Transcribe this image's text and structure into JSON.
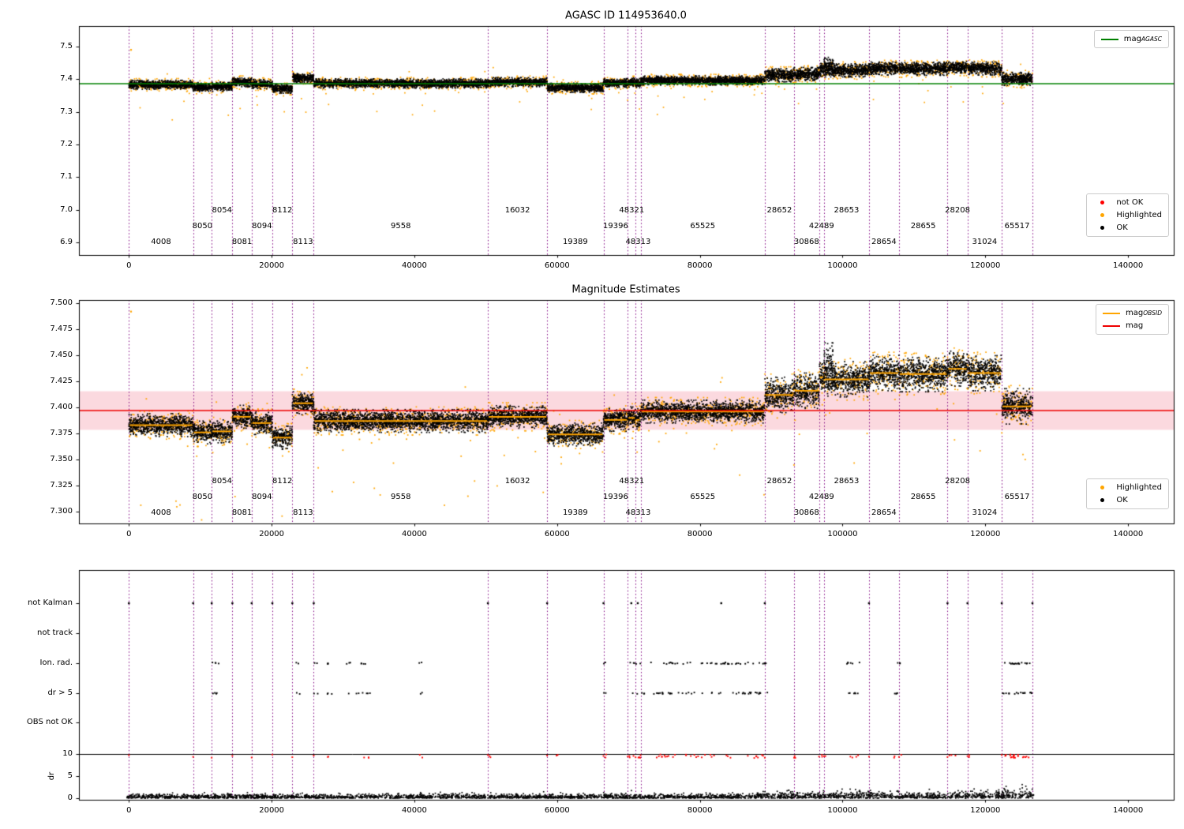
{
  "colors": {
    "ok": "#000000",
    "highlighted": "#ffa500",
    "not_ok": "#ff0000",
    "agasc_line": "#008000",
    "obsid_line": "#ffa500",
    "mag_line": "#ee0000",
    "mag_band": "#fbd9df",
    "boundary": "#800080"
  },
  "chart_data": [
    {
      "id": "agasc-magnitude-chart",
      "type": "scatter",
      "title": "AGASC ID 114953640.0",
      "xlim": [
        -7000,
        146400
      ],
      "xticks": [
        0,
        20000,
        40000,
        60000,
        80000,
        100000,
        120000,
        140000
      ],
      "ylim": [
        6.861,
        7.563
      ],
      "yticks": [
        7.5,
        7.4,
        7.3,
        7.2,
        7.1,
        7.0,
        6.9
      ],
      "mag_agasc": 7.386,
      "legend_line": [
        {
          "type": "line",
          "color": "#008000",
          "label": "mag",
          "sub": "AGASC"
        }
      ],
      "legend_points": [
        {
          "type": "dot",
          "color": "#ff0000",
          "label": "not OK"
        },
        {
          "type": "dot",
          "color": "#ffa500",
          "label": "Highlighted"
        },
        {
          "type": "dot",
          "color": "#000000",
          "label": "OK"
        }
      ],
      "segments": [
        {
          "obsid": "4008",
          "start": 0,
          "end": 9000,
          "mag": 7.383
        },
        {
          "obsid": "8050",
          "start": 9000,
          "end": 11600,
          "mag": 7.376
        },
        {
          "obsid": "8054",
          "start": 11600,
          "end": 14500,
          "mag": 7.377
        },
        {
          "obsid": "8081",
          "start": 14500,
          "end": 17200,
          "mag": 7.391
        },
        {
          "obsid": "8094",
          "start": 17200,
          "end": 20100,
          "mag": 7.385
        },
        {
          "obsid": "8112",
          "start": 20100,
          "end": 22900,
          "mag": 7.371
        },
        {
          "obsid": "8113",
          "start": 22900,
          "end": 25900,
          "mag": 7.404
        },
        {
          "obsid": "9558",
          "start": 25900,
          "end": 50300,
          "mag": 7.387
        },
        {
          "obsid": "16032",
          "start": 50300,
          "end": 58600,
          "mag": 7.391
        },
        {
          "obsid": "19389",
          "start": 58600,
          "end": 66500,
          "mag": 7.374
        },
        {
          "obsid": "19396",
          "start": 66500,
          "end": 69900,
          "mag": 7.388
        },
        {
          "obsid": "48321",
          "start": 69900,
          "end": 71000,
          "mag": 7.39
        },
        {
          "obsid": "48313",
          "start": 71000,
          "end": 71700,
          "mag": 7.388
        },
        {
          "obsid": "65525",
          "start": 71700,
          "end": 89100,
          "mag": 7.396
        },
        {
          "obsid": "28652",
          "start": 89100,
          "end": 93200,
          "mag": 7.412
        },
        {
          "obsid": "30868",
          "start": 93200,
          "end": 96700,
          "mag": 7.416
        },
        {
          "obsid": "42489",
          "start": 96700,
          "end": 97400,
          "mag": 7.429
        },
        {
          "obsid": "28653",
          "start": 97400,
          "end": 103700,
          "mag": 7.427
        },
        {
          "obsid": "28654",
          "start": 103700,
          "end": 107900,
          "mag": 7.433
        },
        {
          "obsid": "28655",
          "start": 107900,
          "end": 114700,
          "mag": 7.432
        },
        {
          "obsid": "28208",
          "start": 114700,
          "end": 117500,
          "mag": 7.437
        },
        {
          "obsid": "31024",
          "start": 117500,
          "end": 122300,
          "mag": 7.433
        },
        {
          "obsid": "65517",
          "start": 122300,
          "end": 126600,
          "mag": 7.401
        }
      ]
    },
    {
      "id": "magnitude-estimates-chart",
      "type": "scatter",
      "title": "Magnitude Estimates",
      "xlim": [
        -7000,
        146400
      ],
      "xticks": [
        0,
        20000,
        40000,
        60000,
        80000,
        100000,
        120000,
        140000
      ],
      "ylim": [
        7.2886,
        7.5031
      ],
      "yticks": [
        7.5,
        7.475,
        7.45,
        7.425,
        7.4,
        7.375,
        7.35,
        7.325,
        7.3
      ],
      "mag": 7.397,
      "mag_band": [
        7.3785,
        7.4155
      ],
      "legend_lines": [
        {
          "type": "line",
          "color": "#ffa500",
          "label": "mag",
          "sub": "OBSID"
        },
        {
          "type": "line",
          "color": "#ee0000",
          "label": "mag",
          "sub": ""
        }
      ],
      "legend_points": [
        {
          "type": "dot",
          "color": "#ffa500",
          "label": "Highlighted"
        },
        {
          "type": "dot",
          "color": "#000000",
          "label": "OK"
        }
      ]
    },
    {
      "id": "flags-dr-chart",
      "type": "scatter",
      "rows": [
        "not Kalman",
        "not track",
        "Ion. rad.",
        "dr > 5",
        "OBS not OK"
      ],
      "ylabel": "dr",
      "dr_ticks": [
        10,
        5,
        0
      ],
      "dr_limit_line": 10,
      "xticks": [
        0,
        20000,
        40000,
        60000,
        80000,
        100000,
        120000,
        140000
      ],
      "not_kalman_x": [
        0,
        9000,
        11600,
        14500,
        17200,
        20100,
        22900,
        25900,
        50300,
        58600,
        66500,
        70400,
        71300,
        83000,
        89100,
        103700,
        114700,
        117500,
        122300,
        126600
      ],
      "not_track_x": [],
      "obs_not_ok_x": [],
      "flag_clusters": [
        [
          11700,
          12600,
          4
        ],
        [
          23200,
          24200,
          2
        ],
        [
          25900,
          26500,
          2
        ],
        [
          27600,
          28600,
          3
        ],
        [
          30200,
          34500,
          7
        ],
        [
          40600,
          41100,
          2
        ],
        [
          66500,
          67100,
          2
        ],
        [
          69900,
          72400,
          5
        ],
        [
          73000,
          89800,
          42
        ],
        [
          100400,
          102400,
          6
        ],
        [
          107000,
          108300,
          4
        ],
        [
          122400,
          126500,
          16
        ]
      ],
      "red_dr_clusters": [
        [
          27600,
          28600,
          2
        ],
        [
          32500,
          34200,
          3
        ],
        [
          40500,
          41200,
          2
        ],
        [
          49900,
          50700,
          2
        ],
        [
          59800,
          60600,
          2
        ],
        [
          66400,
          67200,
          2
        ],
        [
          69900,
          71900,
          6
        ],
        [
          73000,
          89900,
          32
        ],
        [
          93100,
          93600,
          2
        ],
        [
          96600,
          97700,
          3
        ],
        [
          100400,
          102400,
          4
        ],
        [
          107000,
          108400,
          3
        ],
        [
          114600,
          115900,
          3
        ],
        [
          117300,
          117900,
          2
        ],
        [
          122400,
          126600,
          20
        ]
      ]
    }
  ]
}
